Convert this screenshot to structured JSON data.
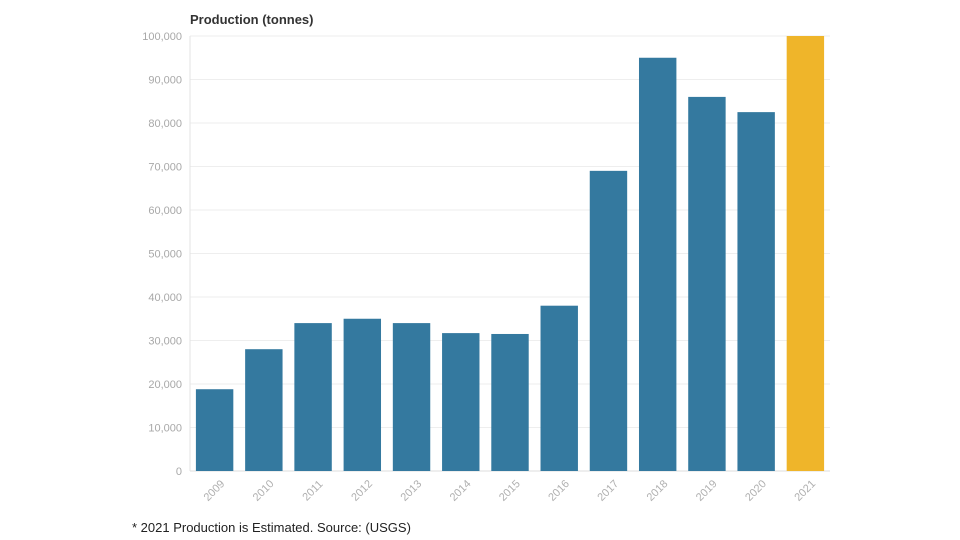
{
  "chart_data": {
    "type": "bar",
    "title": "Production (tonnes)",
    "categories": [
      "2009",
      "2010",
      "2011",
      "2012",
      "2013",
      "2014",
      "2015",
      "2016",
      "2017",
      "2018",
      "2019",
      "2020",
      "2021"
    ],
    "values": [
      18800,
      28000,
      34000,
      35000,
      34000,
      31700,
      31500,
      38000,
      69000,
      95000,
      86000,
      82500,
      100000
    ],
    "highlight_index": 12,
    "ylim": [
      0,
      100000
    ],
    "yticks": [
      0,
      10000,
      20000,
      30000,
      40000,
      50000,
      60000,
      70000,
      80000,
      90000,
      100000
    ],
    "ytick_labels": [
      "0",
      "10,000",
      "20,000",
      "30,000",
      "40,000",
      "50,000",
      "60,000",
      "70,000",
      "80,000",
      "90,000",
      "100,000"
    ],
    "grid": true,
    "bar_color": "#34799f",
    "highlight_color": "#efb52a"
  },
  "footnote": "* 2021 Production is Estimated. Source: (USGS)"
}
